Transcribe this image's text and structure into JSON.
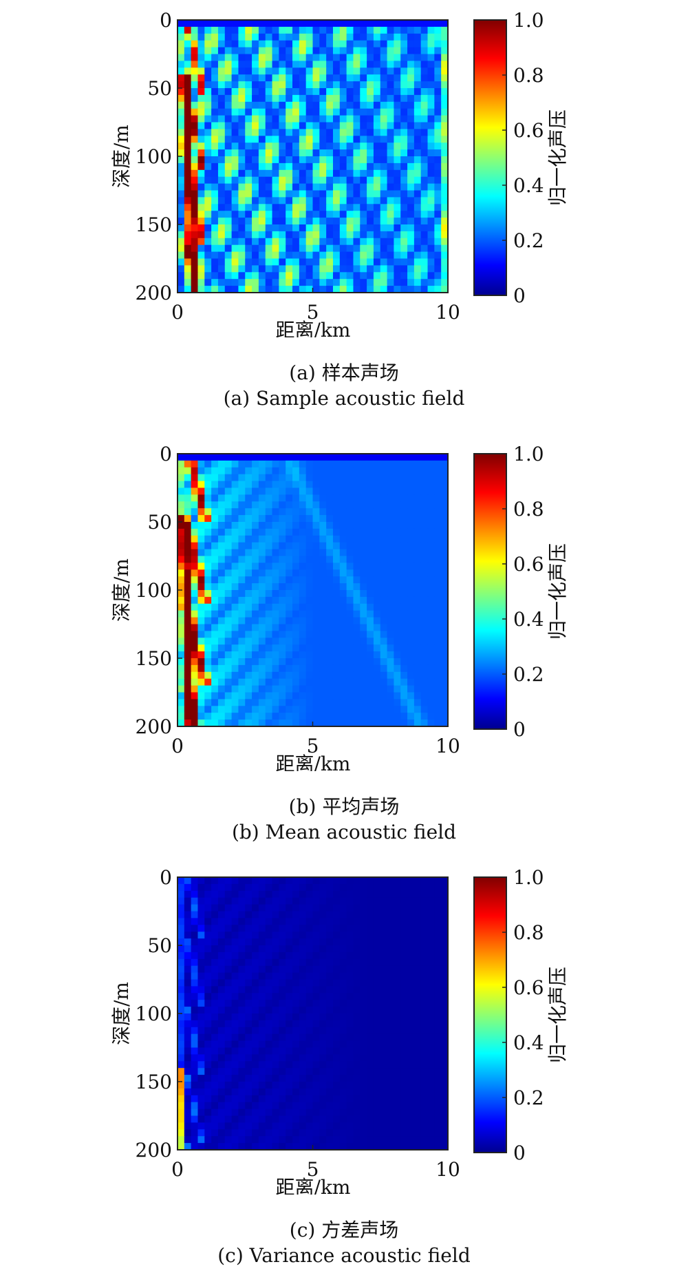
{
  "chart_data": [
    {
      "type": "heatmap",
      "panel": "a",
      "x_label": "距离/km",
      "y_label": "深度/m",
      "x_ticks": [
        "0",
        "5",
        "10"
      ],
      "y_ticks": [
        "0",
        "50",
        "100",
        "150",
        "200"
      ],
      "xlim": [
        0,
        10
      ],
      "ylim": [
        0,
        200
      ],
      "y_inverted": true,
      "colorbar_label": "归一化声压",
      "colorbar_ticks": [
        "0",
        "0.2",
        "0.4",
        "0.6",
        "0.8",
        "1.0"
      ],
      "colorbar_range": [
        0,
        1
      ],
      "colormap": "jet",
      "caption_cn": "(a) 样本声场",
      "caption_en": "(a) Sample acoustic field",
      "field_pattern": "sample",
      "colors": {
        "low": "#00008f",
        "mid": "#2cc4ea",
        "high": "#800000"
      }
    },
    {
      "type": "heatmap",
      "panel": "b",
      "x_label": "距离/km",
      "y_label": "深度/m",
      "x_ticks": [
        "0",
        "5",
        "10"
      ],
      "y_ticks": [
        "0",
        "50",
        "100",
        "150",
        "200"
      ],
      "xlim": [
        0,
        10
      ],
      "ylim": [
        0,
        200
      ],
      "y_inverted": true,
      "colorbar_label": "归一化声压",
      "colorbar_ticks": [
        "0",
        "0.2",
        "0.4",
        "0.6",
        "0.8",
        "1.0"
      ],
      "colorbar_range": [
        0,
        1
      ],
      "colormap": "jet",
      "caption_cn": "(b) 平均声场",
      "caption_en": "(b) Mean acoustic field",
      "field_pattern": "mean",
      "colors": {
        "low": "#00008f",
        "mid": "#2cc4ea",
        "high": "#800000"
      }
    },
    {
      "type": "heatmap",
      "panel": "c",
      "x_label": "距离/km",
      "y_label": "深度/m",
      "x_ticks": [
        "0",
        "5",
        "10"
      ],
      "y_ticks": [
        "0",
        "50",
        "100",
        "150",
        "200"
      ],
      "xlim": [
        0,
        10
      ],
      "ylim": [
        0,
        200
      ],
      "y_inverted": true,
      "colorbar_label": "归一化声压",
      "colorbar_ticks": [
        "0",
        "0.2",
        "0.4",
        "0.6",
        "0.8",
        "1.0"
      ],
      "colorbar_range": [
        0,
        1
      ],
      "colormap": "jet",
      "caption_cn": "(c) 方差声场",
      "caption_en": "(c) Variance acoustic field",
      "field_pattern": "variance",
      "colors": {
        "low": "#00008f",
        "mid": "#2cc4ea",
        "high": "#800000"
      }
    }
  ]
}
